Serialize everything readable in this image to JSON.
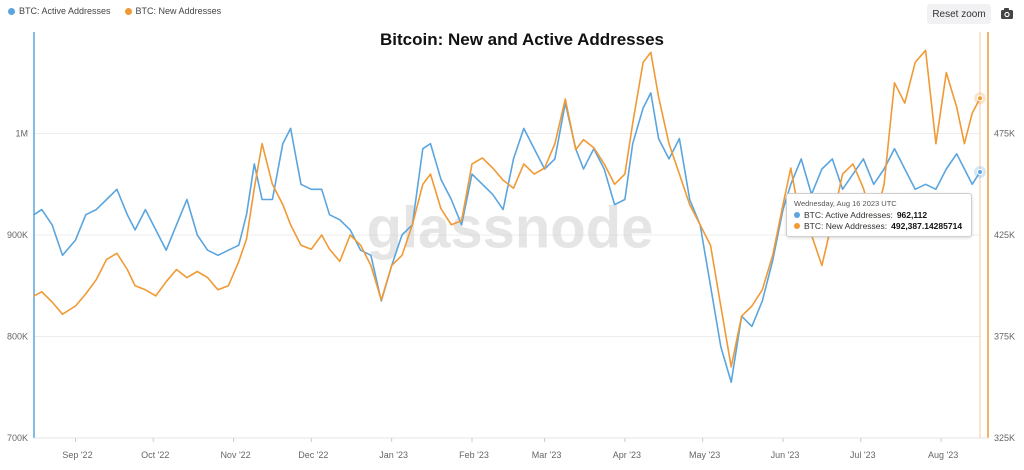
{
  "legend": {
    "items": [
      {
        "label": "BTC: Active Addresses",
        "color": "#5ba5df"
      },
      {
        "label": "BTC: New Addresses",
        "color": "#f09a36"
      }
    ]
  },
  "toolbar": {
    "reset_zoom_label": "Reset zoom",
    "camera_icon": "camera-icon"
  },
  "watermark": "glassnode",
  "tooltip": {
    "date": "Wednesday, Aug 16 2023 UTC",
    "active_label": "BTC: Active Addresses:",
    "active_value": "962,112",
    "new_label": "BTC: New Addresses:",
    "new_value": "492,387.14285714"
  },
  "chart_data": {
    "type": "line",
    "title": "Bitcoin: New and Active Addresses",
    "x_range": [
      "2022-08-16",
      "2023-08-16"
    ],
    "x_ticks": [
      {
        "date": "2022-09-01",
        "label": "Sep '22"
      },
      {
        "date": "2022-10-01",
        "label": "Oct '22"
      },
      {
        "date": "2022-11-01",
        "label": "Nov '22"
      },
      {
        "date": "2022-12-01",
        "label": "Dec '22"
      },
      {
        "date": "2023-01-01",
        "label": "Jan '23"
      },
      {
        "date": "2023-02-01",
        "label": "Feb '23"
      },
      {
        "date": "2023-03-01",
        "label": "Mar '23"
      },
      {
        "date": "2023-04-01",
        "label": "Apr '23"
      },
      {
        "date": "2023-05-01",
        "label": "May '23"
      },
      {
        "date": "2023-06-01",
        "label": "Jun '23"
      },
      {
        "date": "2023-07-01",
        "label": "Jul '23"
      },
      {
        "date": "2023-08-01",
        "label": "Aug '23"
      }
    ],
    "y_left": {
      "range": [
        700000,
        1100000
      ],
      "ticks": [
        700000,
        800000,
        900000,
        1000000
      ],
      "tick_labels": [
        "700K",
        "800K",
        "900K",
        "1M"
      ]
    },
    "y_right": {
      "range": [
        325000,
        525000
      ],
      "ticks": [
        325000,
        375000,
        425000,
        475000
      ],
      "tick_labels": [
        "325K",
        "375K",
        "425K",
        "475K"
      ]
    },
    "grid": true,
    "legend_position": "top-left",
    "series": [
      {
        "name": "BTC: Active Addresses",
        "axis": "left",
        "color": "#5ba5df",
        "points": [
          [
            "2022-08-16",
            920000
          ],
          [
            "2022-08-19",
            925000
          ],
          [
            "2022-08-23",
            910000
          ],
          [
            "2022-08-27",
            880000
          ],
          [
            "2022-09-01",
            895000
          ],
          [
            "2022-09-05",
            920000
          ],
          [
            "2022-09-09",
            925000
          ],
          [
            "2022-09-13",
            935000
          ],
          [
            "2022-09-17",
            945000
          ],
          [
            "2022-09-21",
            920000
          ],
          [
            "2022-09-24",
            905000
          ],
          [
            "2022-09-28",
            925000
          ],
          [
            "2022-10-02",
            905000
          ],
          [
            "2022-10-06",
            885000
          ],
          [
            "2022-10-10",
            910000
          ],
          [
            "2022-10-14",
            935000
          ],
          [
            "2022-10-18",
            900000
          ],
          [
            "2022-10-22",
            885000
          ],
          [
            "2022-10-26",
            880000
          ],
          [
            "2022-10-30",
            885000
          ],
          [
            "2022-11-03",
            890000
          ],
          [
            "2022-11-06",
            920000
          ],
          [
            "2022-11-09",
            970000
          ],
          [
            "2022-11-12",
            935000
          ],
          [
            "2022-11-16",
            935000
          ],
          [
            "2022-11-20",
            990000
          ],
          [
            "2022-11-23",
            1005000
          ],
          [
            "2022-11-27",
            950000
          ],
          [
            "2022-12-01",
            945000
          ],
          [
            "2022-12-05",
            945000
          ],
          [
            "2022-12-08",
            920000
          ],
          [
            "2022-12-12",
            915000
          ],
          [
            "2022-12-16",
            905000
          ],
          [
            "2022-12-20",
            885000
          ],
          [
            "2022-12-24",
            880000
          ],
          [
            "2022-12-28",
            835000
          ],
          [
            "2023-01-01",
            870000
          ],
          [
            "2023-01-05",
            900000
          ],
          [
            "2023-01-09",
            910000
          ],
          [
            "2023-01-13",
            985000
          ],
          [
            "2023-01-16",
            990000
          ],
          [
            "2023-01-20",
            955000
          ],
          [
            "2023-01-24",
            935000
          ],
          [
            "2023-01-28",
            910000
          ],
          [
            "2023-02-01",
            960000
          ],
          [
            "2023-02-05",
            950000
          ],
          [
            "2023-02-09",
            940000
          ],
          [
            "2023-02-13",
            925000
          ],
          [
            "2023-02-17",
            975000
          ],
          [
            "2023-02-21",
            1005000
          ],
          [
            "2023-02-25",
            985000
          ],
          [
            "2023-03-01",
            965000
          ],
          [
            "2023-03-05",
            975000
          ],
          [
            "2023-03-09",
            1030000
          ],
          [
            "2023-03-13",
            985000
          ],
          [
            "2023-03-16",
            965000
          ],
          [
            "2023-03-20",
            985000
          ],
          [
            "2023-03-24",
            965000
          ],
          [
            "2023-03-28",
            930000
          ],
          [
            "2023-04-01",
            935000
          ],
          [
            "2023-04-04",
            990000
          ],
          [
            "2023-04-08",
            1025000
          ],
          [
            "2023-04-11",
            1040000
          ],
          [
            "2023-04-14",
            995000
          ],
          [
            "2023-04-18",
            975000
          ],
          [
            "2023-04-22",
            995000
          ],
          [
            "2023-04-26",
            935000
          ],
          [
            "2023-04-30",
            910000
          ],
          [
            "2023-05-04",
            850000
          ],
          [
            "2023-05-08",
            790000
          ],
          [
            "2023-05-12",
            755000
          ],
          [
            "2023-05-16",
            820000
          ],
          [
            "2023-05-20",
            810000
          ],
          [
            "2023-05-24",
            835000
          ],
          [
            "2023-05-28",
            875000
          ],
          [
            "2023-06-01",
            925000
          ],
          [
            "2023-06-04",
            950000
          ],
          [
            "2023-06-08",
            975000
          ],
          [
            "2023-06-12",
            940000
          ],
          [
            "2023-06-16",
            965000
          ],
          [
            "2023-06-20",
            975000
          ],
          [
            "2023-06-24",
            945000
          ],
          [
            "2023-06-28",
            960000
          ],
          [
            "2023-07-02",
            975000
          ],
          [
            "2023-07-06",
            950000
          ],
          [
            "2023-07-10",
            965000
          ],
          [
            "2023-07-14",
            985000
          ],
          [
            "2023-07-18",
            965000
          ],
          [
            "2023-07-22",
            945000
          ],
          [
            "2023-07-26",
            950000
          ],
          [
            "2023-07-30",
            945000
          ],
          [
            "2023-08-03",
            965000
          ],
          [
            "2023-08-07",
            980000
          ],
          [
            "2023-08-10",
            965000
          ],
          [
            "2023-08-13",
            950000
          ],
          [
            "2023-08-16",
            962112
          ]
        ]
      },
      {
        "name": "BTC: New Addresses",
        "axis": "right",
        "color": "#f09a36",
        "points": [
          [
            "2022-08-16",
            395000
          ],
          [
            "2022-08-19",
            397000
          ],
          [
            "2022-08-23",
            392000
          ],
          [
            "2022-08-27",
            386000
          ],
          [
            "2022-09-01",
            390000
          ],
          [
            "2022-09-05",
            396000
          ],
          [
            "2022-09-09",
            403000
          ],
          [
            "2022-09-13",
            413000
          ],
          [
            "2022-09-17",
            416000
          ],
          [
            "2022-09-21",
            408000
          ],
          [
            "2022-09-24",
            400000
          ],
          [
            "2022-09-28",
            398000
          ],
          [
            "2022-10-02",
            395000
          ],
          [
            "2022-10-06",
            402000
          ],
          [
            "2022-10-10",
            408000
          ],
          [
            "2022-10-14",
            404000
          ],
          [
            "2022-10-18",
            407000
          ],
          [
            "2022-10-22",
            404000
          ],
          [
            "2022-10-26",
            398000
          ],
          [
            "2022-10-30",
            400000
          ],
          [
            "2022-11-03",
            412000
          ],
          [
            "2022-11-06",
            423000
          ],
          [
            "2022-11-09",
            448000
          ],
          [
            "2022-11-12",
            470000
          ],
          [
            "2022-11-16",
            450000
          ],
          [
            "2022-11-20",
            440000
          ],
          [
            "2022-11-23",
            430000
          ],
          [
            "2022-11-27",
            420000
          ],
          [
            "2022-12-01",
            418000
          ],
          [
            "2022-12-05",
            425000
          ],
          [
            "2022-12-08",
            418000
          ],
          [
            "2022-12-12",
            412000
          ],
          [
            "2022-12-16",
            425000
          ],
          [
            "2022-12-20",
            420000
          ],
          [
            "2022-12-24",
            410000
          ],
          [
            "2022-12-28",
            393000
          ],
          [
            "2023-01-01",
            410000
          ],
          [
            "2023-01-05",
            415000
          ],
          [
            "2023-01-09",
            430000
          ],
          [
            "2023-01-13",
            450000
          ],
          [
            "2023-01-16",
            455000
          ],
          [
            "2023-01-20",
            438000
          ],
          [
            "2023-01-24",
            430000
          ],
          [
            "2023-01-28",
            432000
          ],
          [
            "2023-02-01",
            460000
          ],
          [
            "2023-02-05",
            463000
          ],
          [
            "2023-02-09",
            458000
          ],
          [
            "2023-02-13",
            452000
          ],
          [
            "2023-02-17",
            448000
          ],
          [
            "2023-02-21",
            460000
          ],
          [
            "2023-02-25",
            455000
          ],
          [
            "2023-03-01",
            458000
          ],
          [
            "2023-03-05",
            470000
          ],
          [
            "2023-03-09",
            492000
          ],
          [
            "2023-03-13",
            467000
          ],
          [
            "2023-03-16",
            472000
          ],
          [
            "2023-03-20",
            468000
          ],
          [
            "2023-03-24",
            460000
          ],
          [
            "2023-03-28",
            450000
          ],
          [
            "2023-04-01",
            455000
          ],
          [
            "2023-04-04",
            480000
          ],
          [
            "2023-04-08",
            510000
          ],
          [
            "2023-04-11",
            515000
          ],
          [
            "2023-04-14",
            493000
          ],
          [
            "2023-04-18",
            470000
          ],
          [
            "2023-04-22",
            455000
          ],
          [
            "2023-04-26",
            440000
          ],
          [
            "2023-04-30",
            430000
          ],
          [
            "2023-05-04",
            420000
          ],
          [
            "2023-05-08",
            390000
          ],
          [
            "2023-05-12",
            360000
          ],
          [
            "2023-05-16",
            385000
          ],
          [
            "2023-05-20",
            390000
          ],
          [
            "2023-05-24",
            398000
          ],
          [
            "2023-05-28",
            415000
          ],
          [
            "2023-06-01",
            440000
          ],
          [
            "2023-06-04",
            458000
          ],
          [
            "2023-06-08",
            430000
          ],
          [
            "2023-06-12",
            425000
          ],
          [
            "2023-06-16",
            410000
          ],
          [
            "2023-06-20",
            432000
          ],
          [
            "2023-06-24",
            455000
          ],
          [
            "2023-06-28",
            460000
          ],
          [
            "2023-07-02",
            448000
          ],
          [
            "2023-07-06",
            430000
          ],
          [
            "2023-07-10",
            450000
          ],
          [
            "2023-07-14",
            500000
          ],
          [
            "2023-07-18",
            490000
          ],
          [
            "2023-07-22",
            510000
          ],
          [
            "2023-07-26",
            516000
          ],
          [
            "2023-07-30",
            470000
          ],
          [
            "2023-08-03",
            505000
          ],
          [
            "2023-08-07",
            488000
          ],
          [
            "2023-08-10",
            470000
          ],
          [
            "2023-08-13",
            485000
          ],
          [
            "2023-08-16",
            492387.14285714
          ]
        ]
      }
    ],
    "hover_date": "2023-08-16"
  }
}
